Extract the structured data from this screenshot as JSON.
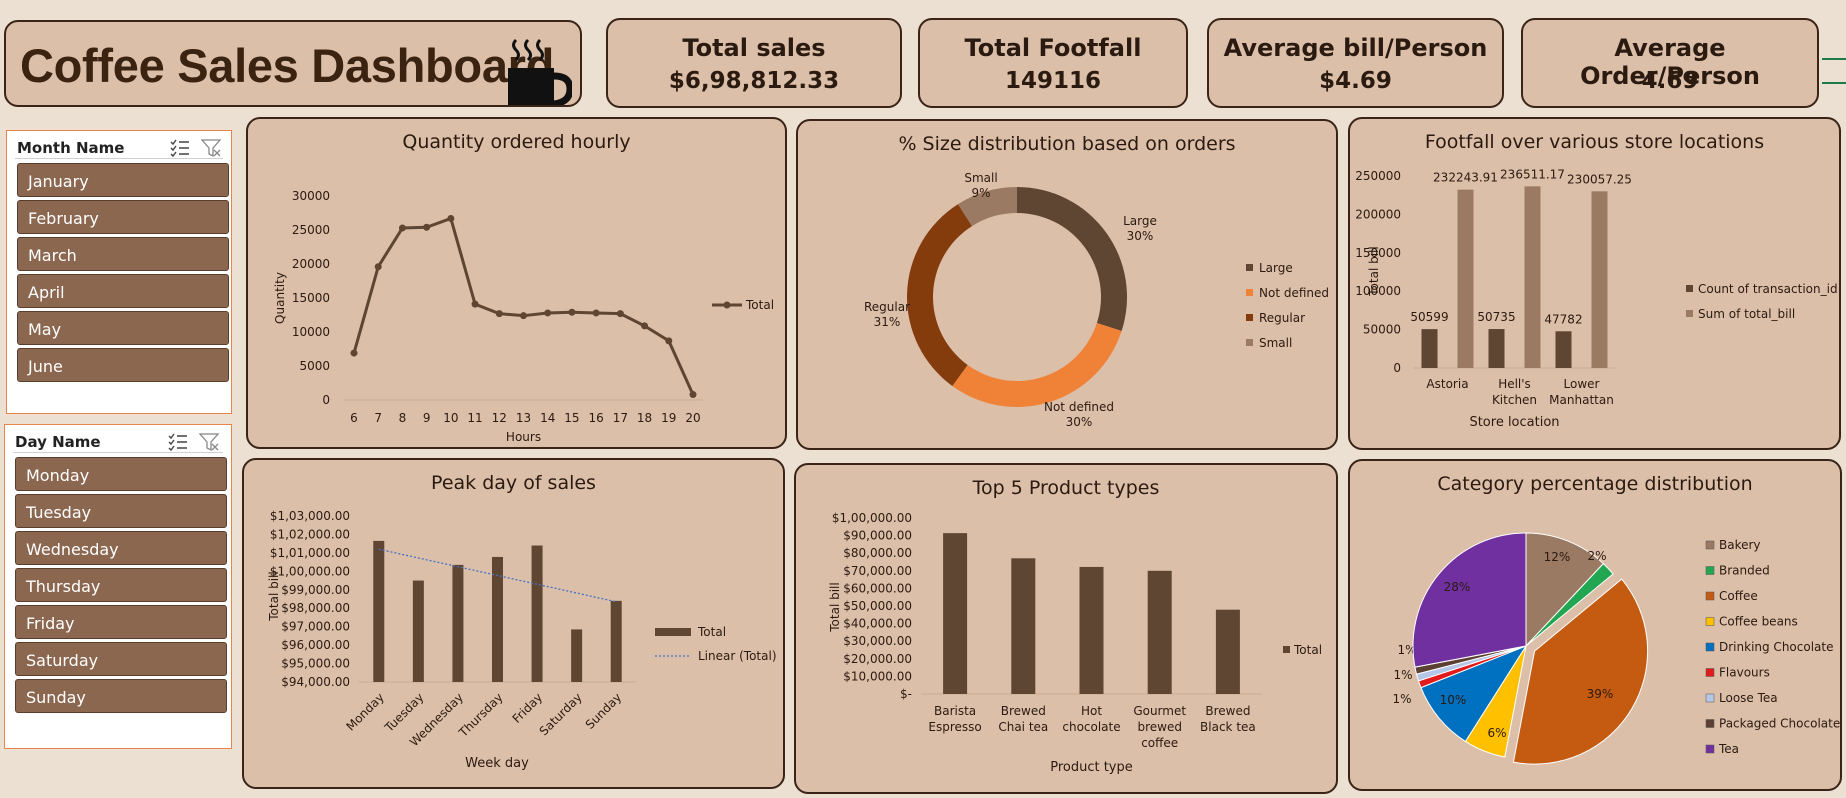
{
  "dashboard": {
    "title": "Coffee Sales Dashboard"
  },
  "kpis": [
    {
      "label": "Total sales",
      "value": "$6,98,812.33"
    },
    {
      "label": "Total Footfall",
      "value": "149116"
    },
    {
      "label": "Average bill/Person",
      "value": "$4.69"
    },
    {
      "label": "Average Order/Person",
      "value": "4.69"
    }
  ],
  "slicers": {
    "month": {
      "title": "Month Name",
      "items": [
        "January",
        "February",
        "March",
        "April",
        "May",
        "June"
      ]
    },
    "day": {
      "title": "Day Name",
      "items": [
        "Monday",
        "Tuesday",
        "Wednesday",
        "Thursday",
        "Friday",
        "Saturday",
        "Sunday"
      ]
    }
  },
  "colors": {
    "dark_brown": "#5e4632",
    "mid_brown": "#9b7a63",
    "panel_bg": "#dbbfa9",
    "orange": "#ef8236",
    "rust": "#843c0c"
  },
  "chart_data": [
    {
      "type": "line",
      "title": "Quantity ordered hourly",
      "xlabel": "Hours",
      "ylabel": "Quantity",
      "x": [
        6,
        7,
        8,
        9,
        10,
        11,
        12,
        13,
        14,
        15,
        16,
        17,
        18,
        19,
        20
      ],
      "series": [
        {
          "name": "Total",
          "values": [
            6900,
            19600,
            25300,
            25400,
            26700,
            14100,
            12700,
            12400,
            12800,
            12900,
            12800,
            12700,
            10900,
            8700,
            800
          ]
        }
      ],
      "ylim": [
        0,
        30000
      ],
      "yticks": [
        "0",
        "5000",
        "10000",
        "15000",
        "20000",
        "25000",
        "30000"
      ],
      "legend": "right"
    },
    {
      "type": "pie",
      "subtype": "donut",
      "title": "% Size distribution based on orders",
      "slices": [
        {
          "label": "Large",
          "pct": "30%",
          "value": 30,
          "color": "#5e4632"
        },
        {
          "label": "Not defined",
          "pct": "30%",
          "value": 30,
          "color": "#ef8236"
        },
        {
          "label": "Regular",
          "pct": "31%",
          "value": 31,
          "color": "#843c0c"
        },
        {
          "label": "Small",
          "pct": "9%",
          "value": 9,
          "color": "#9b7a63"
        }
      ],
      "legend": "right"
    },
    {
      "type": "bar",
      "title": "Footfall over various store locations",
      "xlabel": "Store location",
      "ylabel": "Total bill",
      "categories": [
        "Astoria",
        "Hell's Kitchen",
        "Lower Manhattan"
      ],
      "category_lines": [
        [
          "Astoria"
        ],
        [
          "Hell's",
          "Kitchen"
        ],
        [
          "Lower",
          "Manhattan"
        ]
      ],
      "series": [
        {
          "name": "Count of transaction_id",
          "values": [
            50599,
            50735,
            47782
          ],
          "labels": [
            "50599",
            "50735",
            "47782"
          ],
          "color": "#5e4632"
        },
        {
          "name": "Sum of total_bill",
          "values": [
            232243.91,
            236511.17,
            230057.25
          ],
          "labels": [
            "232243.91",
            "236511.17",
            "230057.25"
          ],
          "color": "#9b7a63"
        }
      ],
      "ylim": [
        0,
        250000
      ],
      "yticks": [
        "0",
        "50000",
        "100000",
        "150000",
        "200000",
        "250000"
      ],
      "legend": "right"
    },
    {
      "type": "bar",
      "title": "Peak day of sales",
      "xlabel": "Week day",
      "ylabel": "Total bill",
      "categories": [
        "Monday",
        "Tuesday",
        "Wednesday",
        "Thursday",
        "Friday",
        "Saturday",
        "Sunday"
      ],
      "series": [
        {
          "name": "Total",
          "values": [
            101650,
            99500,
            100350,
            100780,
            101400,
            96850,
            98400
          ],
          "color": "#5e4632"
        }
      ],
      "trendline": {
        "name": "Linear (Total)",
        "start": 101200,
        "end": 98350
      },
      "ylim": [
        94000,
        103000
      ],
      "yticks": [
        "$94,000.00",
        "$95,000.00",
        "$96,000.00",
        "$97,000.00",
        "$98,000.00",
        "$99,000.00",
        "$1,00,000.00",
        "$1,01,000.00",
        "$1,02,000.00",
        "$1,03,000.00"
      ],
      "legend": "right"
    },
    {
      "type": "bar",
      "title": "Top 5 Product types",
      "xlabel": "Product type",
      "ylabel": "Total bill",
      "categories": [
        "Barista Espresso",
        "Brewed Chai tea",
        "Hot chocolate",
        "Gourmet brewed coffee",
        "Brewed Black tea"
      ],
      "category_lines": [
        [
          "Barista",
          "Espresso"
        ],
        [
          "Brewed",
          "Chai tea"
        ],
        [
          "Hot",
          "chocolate"
        ],
        [
          "Gourmet",
          "brewed",
          "coffee"
        ],
        [
          "Brewed",
          "Black tea"
        ]
      ],
      "series": [
        {
          "name": "Total",
          "values": [
            91400,
            77100,
            72200,
            70000,
            47900
          ],
          "color": "#5e4632"
        }
      ],
      "ylim": [
        0,
        100000
      ],
      "yticks": [
        "$-",
        "$10,000.00",
        "$20,000.00",
        "$30,000.00",
        "$40,000.00",
        "$50,000.00",
        "$60,000.00",
        "$70,000.00",
        "$80,000.00",
        "$90,000.00",
        "$1,00,000.00"
      ],
      "legend": "right"
    },
    {
      "type": "pie",
      "title": "Category percentage distribution",
      "slices": [
        {
          "label": "Bakery",
          "value": 12,
          "pct": "12%",
          "color": "#9b7a63"
        },
        {
          "label": "Branded",
          "value": 2,
          "pct": "2%",
          "color": "#23a651"
        },
        {
          "label": "Coffee",
          "value": 39,
          "pct": "39%",
          "color": "#c55a11",
          "exploded": true
        },
        {
          "label": "Coffee beans",
          "value": 6,
          "pct": "6%",
          "color": "#ffc000"
        },
        {
          "label": "Drinking Chocolate",
          "value": 10,
          "pct": "10%",
          "color": "#0070c0"
        },
        {
          "label": "Flavours",
          "value": 1,
          "pct": "1%",
          "color": "#e31a1c"
        },
        {
          "label": "Loose Tea",
          "value": 1,
          "pct": "1%",
          "color": "#b4c7e7"
        },
        {
          "label": "Packaged Chocolate",
          "value": 1,
          "pct": "1%",
          "color": "#5c4033"
        },
        {
          "label": "Tea",
          "value": 28,
          "pct": "28%",
          "color": "#7030a0"
        }
      ],
      "legend": "right"
    }
  ]
}
